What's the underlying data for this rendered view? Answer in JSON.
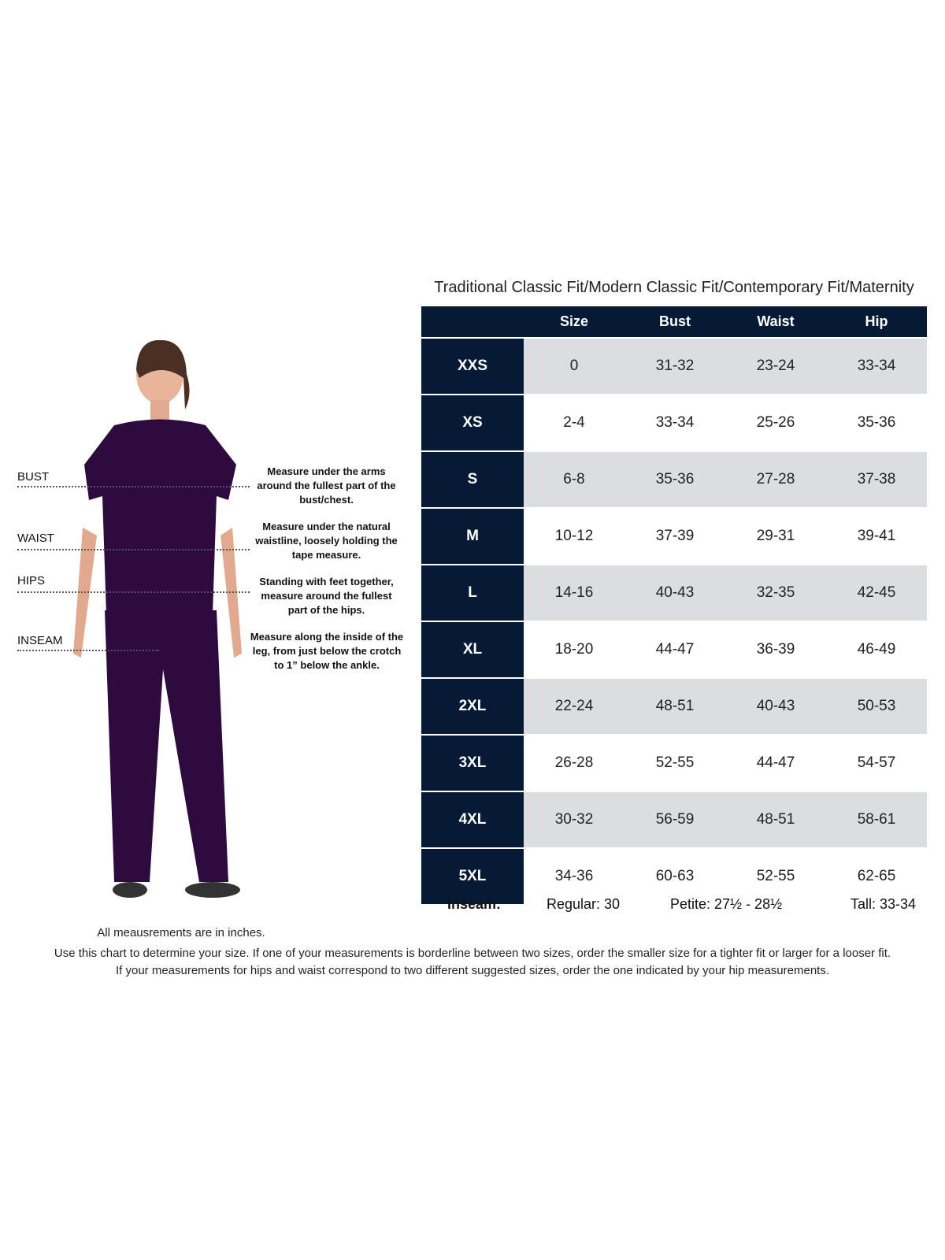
{
  "chart_title": "Traditional Classic Fit/Modern Classic Fit/Contemporary Fit/Maternity",
  "columns": [
    "",
    "Size",
    "Bust",
    "Waist",
    "Hip"
  ],
  "rows": [
    {
      "label": "XXS",
      "size": "0",
      "bust": "31-32",
      "waist": "23-24",
      "hip": "33-34"
    },
    {
      "label": "XS",
      "size": "2-4",
      "bust": "33-34",
      "waist": "25-26",
      "hip": "35-36"
    },
    {
      "label": "S",
      "size": "6-8",
      "bust": "35-36",
      "waist": "27-28",
      "hip": "37-38"
    },
    {
      "label": "M",
      "size": "10-12",
      "bust": "37-39",
      "waist": "29-31",
      "hip": "39-41"
    },
    {
      "label": "L",
      "size": "14-16",
      "bust": "40-43",
      "waist": "32-35",
      "hip": "42-45"
    },
    {
      "label": "XL",
      "size": "18-20",
      "bust": "44-47",
      "waist": "36-39",
      "hip": "46-49"
    },
    {
      "label": "2XL",
      "size": "22-24",
      "bust": "48-51",
      "waist": "40-43",
      "hip": "50-53"
    },
    {
      "label": "3XL",
      "size": "26-28",
      "bust": "52-55",
      "waist": "44-47",
      "hip": "54-57"
    },
    {
      "label": "4XL",
      "size": "30-32",
      "bust": "56-59",
      "waist": "48-51",
      "hip": "58-61"
    },
    {
      "label": "5XL",
      "size": "34-36",
      "bust": "60-63",
      "waist": "52-55",
      "hip": "62-65"
    }
  ],
  "inseam": {
    "label": "Inseam:",
    "regular": "Regular: 30",
    "petite": "Petite: 27½ - 28½",
    "tall": "Tall: 33-34"
  },
  "measurements": [
    {
      "label": "BUST",
      "desc": "Measure under the arms around the fullest part of the bust/chest."
    },
    {
      "label": "WAIST",
      "desc": "Measure under the natural waistline, loosely holding the tape measure."
    },
    {
      "label": "HIPS",
      "desc": "Standing with feet together, measure around the fullest part of the hips."
    },
    {
      "label": "INSEAM",
      "desc": "Measure along the inside of the leg, from just below the crotch to 1” below the ankle."
    }
  ],
  "notes": {
    "units": "All meausrements are in inches.",
    "line1": "Use this chart to determine your size. If one of your measurements is borderline between two sizes, order the smaller size for a tighter fit or larger for a looser fit.",
    "line2": "If your measurements for hips and waist correspond to two different suggested sizes, order the one indicated by your hip measurements."
  },
  "colors": {
    "header": "#061a35",
    "shaded_row": "#dcdde1",
    "scrubs": "#2e0b3f"
  }
}
